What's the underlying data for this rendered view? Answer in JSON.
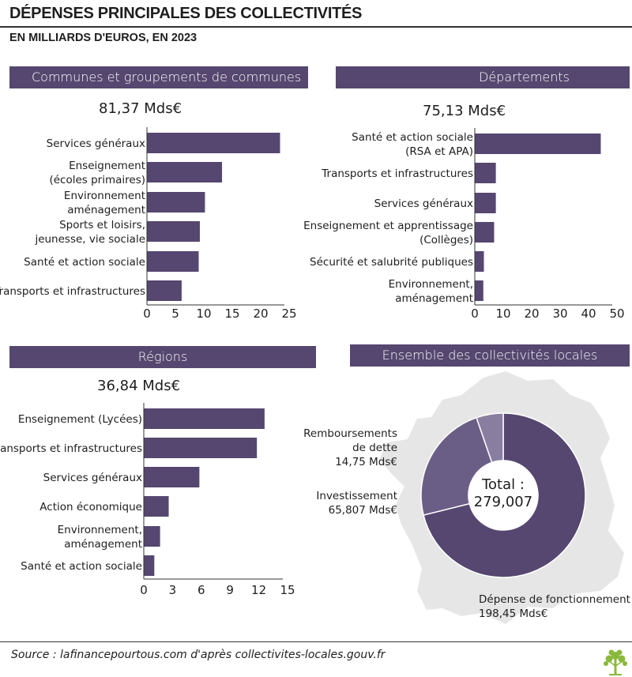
{
  "header": {
    "title": "DÉPENSES PRINCIPALES DES COLLECTIVITÉS",
    "subtitle": "EN MILLIARDS D'EUROS, EN 2023"
  },
  "sections": {
    "communes": {
      "banner": "Communes et groupements de communes",
      "total": "81,37 Mds€"
    },
    "departements": {
      "banner": "Départements",
      "total": "75,13 Mds€"
    },
    "regions": {
      "banner": "Régions",
      "total": "36,84 Mds€"
    },
    "ensemble": {
      "banner": "Ensemble des collectivités locales"
    }
  },
  "colors": {
    "bar": "#55476f",
    "donut_main": "#55476f",
    "donut_mid": "#6b5e86",
    "donut_light": "#8a7ea0",
    "map": "#e6e6e6"
  },
  "chart_data": [
    {
      "id": "communes",
      "type": "bar",
      "orientation": "horizontal",
      "categories": [
        [
          "Services généraux"
        ],
        [
          "Enseignement",
          "(écoles primaires)"
        ],
        [
          "Environnement",
          "aménagement"
        ],
        [
          "Sports et loisirs,",
          "jeunesse, vie sociale"
        ],
        [
          "Santé et action sociale"
        ],
        [
          "Transports et infrastructures"
        ]
      ],
      "values": [
        23.4,
        13.2,
        10.2,
        9.3,
        9.1,
        6.1
      ],
      "xlim": [
        0,
        25
      ],
      "xticks": [
        "0",
        "5",
        "10",
        "15",
        "20",
        "25"
      ]
    },
    {
      "id": "departements",
      "type": "bar",
      "orientation": "horizontal",
      "categories": [
        [
          "Santé et action sociale",
          "(RSA et APA)"
        ],
        [
          "Transports et infrastructures"
        ],
        [
          "Services généraux"
        ],
        [
          "Enseignement et apprentissage",
          "(Collèges)"
        ],
        [
          "Sécurité et salubrité publiques"
        ],
        [
          "Environnement,",
          "aménagement"
        ]
      ],
      "values": [
        44.3,
        7.4,
        7.4,
        6.8,
        3.2,
        3.0
      ],
      "xlim": [
        0,
        50
      ],
      "xticks": [
        "0",
        "10",
        "20",
        "30",
        "40",
        "50"
      ]
    },
    {
      "id": "regions",
      "type": "bar",
      "orientation": "horizontal",
      "categories": [
        [
          "Enseignement (Lycées)"
        ],
        [
          "Transports et infrastructures"
        ],
        [
          "Services généraux"
        ],
        [
          "Action économique"
        ],
        [
          "Environnement,",
          "aménagement"
        ],
        [
          "Santé et action sociale"
        ]
      ],
      "values": [
        12.6,
        11.8,
        5.8,
        2.6,
        1.7,
        1.1
      ],
      "xlim": [
        0,
        15
      ],
      "xticks": [
        "0",
        "3",
        "6",
        "9",
        "12",
        "15"
      ]
    },
    {
      "id": "ensemble",
      "type": "pie",
      "donut": true,
      "center_label": [
        "Total :",
        "279,007"
      ],
      "slices": [
        {
          "label": [
            "Dépense de fonctionnement",
            "198,45 Mds€"
          ],
          "value": 198.45,
          "color": "#55476f"
        },
        {
          "label": [
            "Investissement",
            "65,807 Mds€"
          ],
          "value": 65.807,
          "color": "#6b5e86"
        },
        {
          "label": [
            "Remboursements",
            "de dette",
            "14,75 Mds€"
          ],
          "value": 14.75,
          "color": "#8a7ea0"
        }
      ]
    }
  ],
  "footer": {
    "source": "Source : lafinancepourtous.com d'après collectivites-locales.gouv.fr"
  }
}
